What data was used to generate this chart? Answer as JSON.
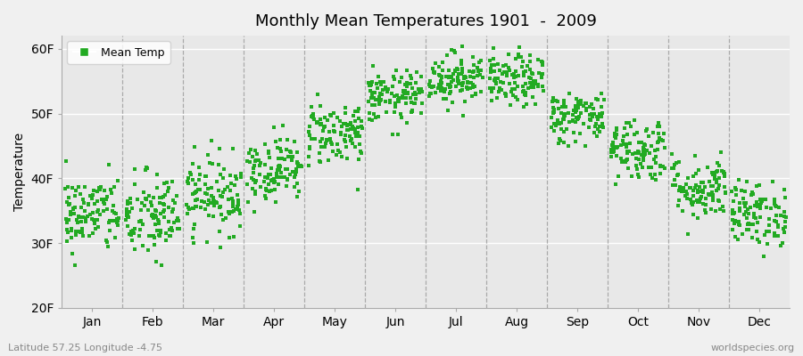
{
  "title": "Monthly Mean Temperatures 1901  -  2009",
  "ylabel": "Temperature",
  "xlabel": "",
  "footer_left": "Latitude 57.25 Longitude -4.75",
  "footer_right": "worldspecies.org",
  "legend_label": "Mean Temp",
  "ylim": [
    20,
    62
  ],
  "yticks": [
    20,
    30,
    40,
    50,
    60
  ],
  "ytick_labels": [
    "20F",
    "30F",
    "40F",
    "50F",
    "60F"
  ],
  "months": [
    "Jan",
    "Feb",
    "Mar",
    "Apr",
    "May",
    "Jun",
    "Jul",
    "Aug",
    "Sep",
    "Oct",
    "Nov",
    "Dec"
  ],
  "dot_color": "#22aa22",
  "plot_bg_color": "#e8e8e8",
  "fig_bg_color": "#f0f0f0",
  "grid_color": "#ffffff",
  "dashed_line_color": "#aaaaaa",
  "n_years": 109,
  "monthly_means_F": [
    34.5,
    34.0,
    37.5,
    41.5,
    47.0,
    52.5,
    55.5,
    55.0,
    49.5,
    44.5,
    38.5,
    34.5
  ],
  "monthly_stds_F": [
    3.0,
    3.5,
    3.0,
    2.5,
    2.5,
    2.0,
    2.0,
    2.0,
    2.0,
    2.5,
    2.5,
    2.5
  ],
  "seed": 42
}
